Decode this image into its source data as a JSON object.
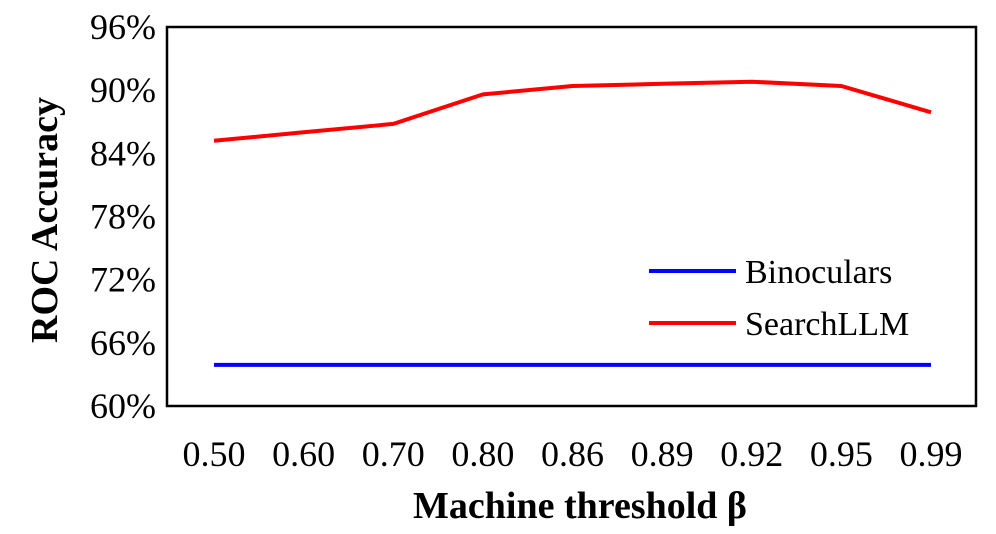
{
  "chart_data": {
    "type": "line",
    "title": "",
    "xlabel": "Machine threshold β",
    "ylabel": "ROC Accuracy",
    "categories": [
      "0.50",
      "0.60",
      "0.70",
      "0.80",
      "0.86",
      "0.89",
      "0.92",
      "0.95",
      "0.99"
    ],
    "ylim": [
      0.6,
      0.96
    ],
    "yticks": [
      0.6,
      0.66,
      0.72,
      0.78,
      0.84,
      0.9,
      0.96
    ],
    "ytick_labels": [
      "60%",
      "66%",
      "72%",
      "78%",
      "84%",
      "90%",
      "96%"
    ],
    "grid": false,
    "legend_position": "right",
    "series": [
      {
        "name": "Binoculars",
        "color": "#0000ff",
        "values": [
          0.639,
          0.639,
          0.639,
          0.639,
          0.639,
          0.639,
          0.639,
          0.639,
          0.639
        ]
      },
      {
        "name": "SearchLLM",
        "color": "#ff0000",
        "values": [
          0.852,
          0.86,
          0.868,
          0.896,
          0.904,
          0.906,
          0.908,
          0.904,
          0.879
        ]
      }
    ]
  }
}
